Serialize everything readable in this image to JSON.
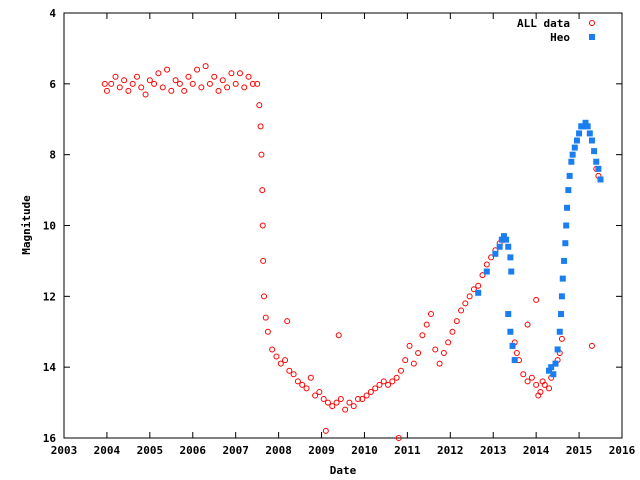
{
  "chart_data": {
    "type": "scatter",
    "xlabel": "Date",
    "ylabel": "Magnitude",
    "xlim": [
      2003,
      2016
    ],
    "ylim": [
      4,
      16
    ],
    "y_inverted": true,
    "x_ticks": [
      2003,
      2004,
      2005,
      2006,
      2007,
      2008,
      2009,
      2010,
      2011,
      2012,
      2013,
      2014,
      2015,
      2016
    ],
    "y_ticks": [
      4,
      6,
      8,
      10,
      12,
      14,
      16
    ],
    "grid": false,
    "legend_position": "top-right",
    "series": [
      {
        "name": "ALL data",
        "marker": "open-circle",
        "color": "#ff0000",
        "points": [
          [
            2003.95,
            6.0
          ],
          [
            2004.0,
            6.2
          ],
          [
            2004.1,
            6.0
          ],
          [
            2004.2,
            5.8
          ],
          [
            2004.3,
            6.1
          ],
          [
            2004.4,
            5.9
          ],
          [
            2004.5,
            6.2
          ],
          [
            2004.6,
            6.0
          ],
          [
            2004.7,
            5.8
          ],
          [
            2004.8,
            6.1
          ],
          [
            2004.9,
            6.3
          ],
          [
            2005.0,
            5.9
          ],
          [
            2005.1,
            6.0
          ],
          [
            2005.2,
            5.7
          ],
          [
            2005.3,
            6.1
          ],
          [
            2005.4,
            5.6
          ],
          [
            2005.5,
            6.2
          ],
          [
            2005.6,
            5.9
          ],
          [
            2005.7,
            6.0
          ],
          [
            2005.8,
            6.2
          ],
          [
            2005.9,
            5.8
          ],
          [
            2006.0,
            6.0
          ],
          [
            2006.1,
            5.6
          ],
          [
            2006.2,
            6.1
          ],
          [
            2006.3,
            5.5
          ],
          [
            2006.4,
            6.0
          ],
          [
            2006.5,
            5.8
          ],
          [
            2006.6,
            6.2
          ],
          [
            2006.7,
            5.9
          ],
          [
            2006.8,
            6.1
          ],
          [
            2006.9,
            5.7
          ],
          [
            2007.0,
            6.0
          ],
          [
            2007.1,
            5.7
          ],
          [
            2007.2,
            6.1
          ],
          [
            2007.3,
            5.8
          ],
          [
            2007.4,
            6.0
          ],
          [
            2007.5,
            6.0
          ],
          [
            2007.55,
            6.6
          ],
          [
            2007.58,
            7.2
          ],
          [
            2007.6,
            8.0
          ],
          [
            2007.62,
            9.0
          ],
          [
            2007.63,
            10.0
          ],
          [
            2007.64,
            11.0
          ],
          [
            2007.66,
            12.0
          ],
          [
            2007.7,
            12.6
          ],
          [
            2007.75,
            13.0
          ],
          [
            2007.85,
            13.5
          ],
          [
            2007.95,
            13.7
          ],
          [
            2008.05,
            13.9
          ],
          [
            2008.15,
            13.8
          ],
          [
            2008.25,
            14.1
          ],
          [
            2008.35,
            14.2
          ],
          [
            2008.45,
            14.4
          ],
          [
            2008.55,
            14.5
          ],
          [
            2008.65,
            14.6
          ],
          [
            2008.75,
            14.3
          ],
          [
            2008.85,
            14.8
          ],
          [
            2008.95,
            14.7
          ],
          [
            2009.05,
            14.9
          ],
          [
            2009.15,
            15.0
          ],
          [
            2009.25,
            15.1
          ],
          [
            2009.35,
            15.0
          ],
          [
            2009.45,
            14.9
          ],
          [
            2009.55,
            15.2
          ],
          [
            2009.65,
            15.0
          ],
          [
            2009.75,
            15.1
          ],
          [
            2009.85,
            14.9
          ],
          [
            2009.95,
            14.9
          ],
          [
            2010.05,
            14.8
          ],
          [
            2010.15,
            14.7
          ],
          [
            2010.25,
            14.6
          ],
          [
            2010.35,
            14.5
          ],
          [
            2010.45,
            14.4
          ],
          [
            2010.55,
            14.5
          ],
          [
            2010.65,
            14.4
          ],
          [
            2010.75,
            14.3
          ],
          [
            2010.85,
            14.1
          ],
          [
            2010.95,
            13.8
          ],
          [
            2011.05,
            13.4
          ],
          [
            2011.15,
            13.9
          ],
          [
            2011.25,
            13.6
          ],
          [
            2011.35,
            13.1
          ],
          [
            2011.45,
            12.8
          ],
          [
            2011.55,
            12.5
          ],
          [
            2011.65,
            13.5
          ],
          [
            2011.75,
            13.9
          ],
          [
            2011.85,
            13.6
          ],
          [
            2011.95,
            13.3
          ],
          [
            2012.05,
            13.0
          ],
          [
            2012.15,
            12.7
          ],
          [
            2012.25,
            12.4
          ],
          [
            2012.35,
            12.2
          ],
          [
            2012.45,
            12.0
          ],
          [
            2012.55,
            11.8
          ],
          [
            2012.65,
            11.7
          ],
          [
            2012.75,
            11.4
          ],
          [
            2012.85,
            11.1
          ],
          [
            2012.95,
            10.9
          ],
          [
            2013.05,
            10.7
          ],
          [
            2013.15,
            10.5
          ],
          [
            2013.25,
            10.4
          ],
          [
            2013.5,
            13.3
          ],
          [
            2013.55,
            13.6
          ],
          [
            2013.6,
            13.8
          ],
          [
            2013.7,
            14.2
          ],
          [
            2013.8,
            14.4
          ],
          [
            2013.9,
            14.3
          ],
          [
            2014.0,
            14.5
          ],
          [
            2014.05,
            14.8
          ],
          [
            2014.1,
            14.7
          ],
          [
            2014.15,
            14.4
          ],
          [
            2014.2,
            14.5
          ],
          [
            2014.3,
            14.6
          ],
          [
            2014.35,
            14.3
          ],
          [
            2014.45,
            13.9
          ],
          [
            2014.5,
            13.8
          ],
          [
            2014.55,
            13.6
          ],
          [
            2014.6,
            13.2
          ],
          [
            2008.2,
            12.7
          ],
          [
            2009.4,
            13.1
          ],
          [
            2010.8,
            16.0
          ],
          [
            2009.1,
            15.8
          ],
          [
            2013.8,
            12.8
          ],
          [
            2014.0,
            12.1
          ],
          [
            2015.3,
            13.4
          ],
          [
            2015.45,
            8.6
          ],
          [
            2015.4,
            8.4
          ]
        ]
      },
      {
        "name": "Heo",
        "marker": "filled-square",
        "color": "#1a7ef0",
        "points": [
          [
            2012.65,
            11.9
          ],
          [
            2012.85,
            11.3
          ],
          [
            2013.05,
            10.8
          ],
          [
            2013.15,
            10.6
          ],
          [
            2013.2,
            10.4
          ],
          [
            2013.25,
            10.3
          ],
          [
            2013.3,
            10.4
          ],
          [
            2013.35,
            10.6
          ],
          [
            2013.4,
            10.9
          ],
          [
            2013.42,
            11.3
          ],
          [
            2013.35,
            12.5
          ],
          [
            2013.4,
            13.0
          ],
          [
            2013.45,
            13.4
          ],
          [
            2013.5,
            13.8
          ],
          [
            2014.3,
            14.1
          ],
          [
            2014.35,
            14.0
          ],
          [
            2014.4,
            14.2
          ],
          [
            2014.45,
            13.9
          ],
          [
            2014.5,
            13.5
          ],
          [
            2014.55,
            13.0
          ],
          [
            2014.58,
            12.5
          ],
          [
            2014.6,
            12.0
          ],
          [
            2014.62,
            11.5
          ],
          [
            2014.65,
            11.0
          ],
          [
            2014.68,
            10.5
          ],
          [
            2014.7,
            10.0
          ],
          [
            2014.72,
            9.5
          ],
          [
            2014.75,
            9.0
          ],
          [
            2014.78,
            8.6
          ],
          [
            2014.82,
            8.2
          ],
          [
            2014.85,
            8.0
          ],
          [
            2014.9,
            7.8
          ],
          [
            2014.95,
            7.6
          ],
          [
            2015.0,
            7.4
          ],
          [
            2015.05,
            7.2
          ],
          [
            2015.1,
            7.2
          ],
          [
            2015.15,
            7.1
          ],
          [
            2015.2,
            7.2
          ],
          [
            2015.25,
            7.4
          ],
          [
            2015.3,
            7.6
          ],
          [
            2015.35,
            7.9
          ],
          [
            2015.4,
            8.2
          ],
          [
            2015.45,
            8.4
          ],
          [
            2015.5,
            8.7
          ]
        ]
      }
    ]
  }
}
